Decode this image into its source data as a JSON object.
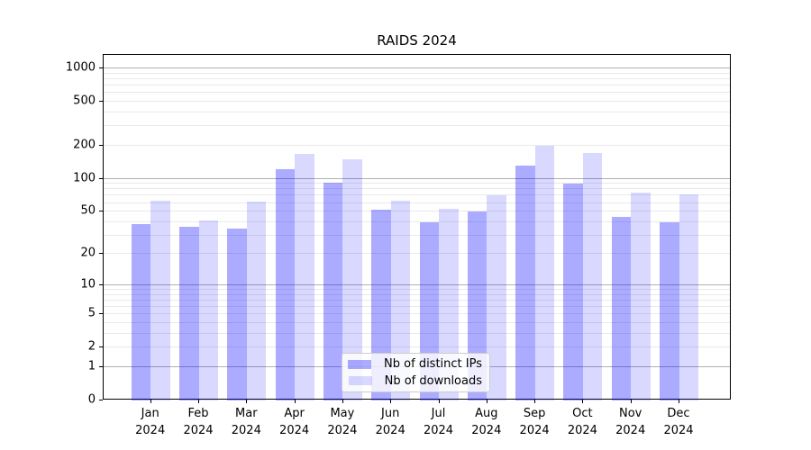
{
  "chart_data": {
    "type": "bar",
    "title": "RAIDS 2024",
    "categories": [
      "Jan",
      "Feb",
      "Mar",
      "Apr",
      "May",
      "Jun",
      "Jul",
      "Aug",
      "Sep",
      "Oct",
      "Nov",
      "Dec"
    ],
    "category_year": "2024",
    "series": [
      {
        "name": "Nb of distinct IPs",
        "fill": "rgba(0,0,255,0.33)",
        "effective_hex": "#ababff",
        "values": [
          38,
          36,
          35,
          122,
          92,
          52,
          40,
          50,
          132,
          91,
          45,
          40
        ]
      },
      {
        "name": "Nb of downloads",
        "fill": "rgba(0,0,255,0.15)",
        "effective_hex": "#d9d9ff",
        "values": [
          63,
          41,
          62,
          169,
          150,
          63,
          53,
          71,
          200,
          171,
          75,
          72
        ]
      }
    ],
    "yscale": "log1p",
    "y_tick_labels": [
      0,
      1,
      2,
      5,
      10,
      20,
      50,
      100,
      200,
      500,
      1000
    ],
    "ylim": [
      0,
      1330
    ],
    "grid": true,
    "major_grid_values": [
      1,
      10,
      100,
      1000
    ],
    "major_grid_color": "#b0b0b0",
    "minor_grid_color": "#e9e9e9",
    "axis_color": "#000000",
    "legend_position": "lower center"
  }
}
